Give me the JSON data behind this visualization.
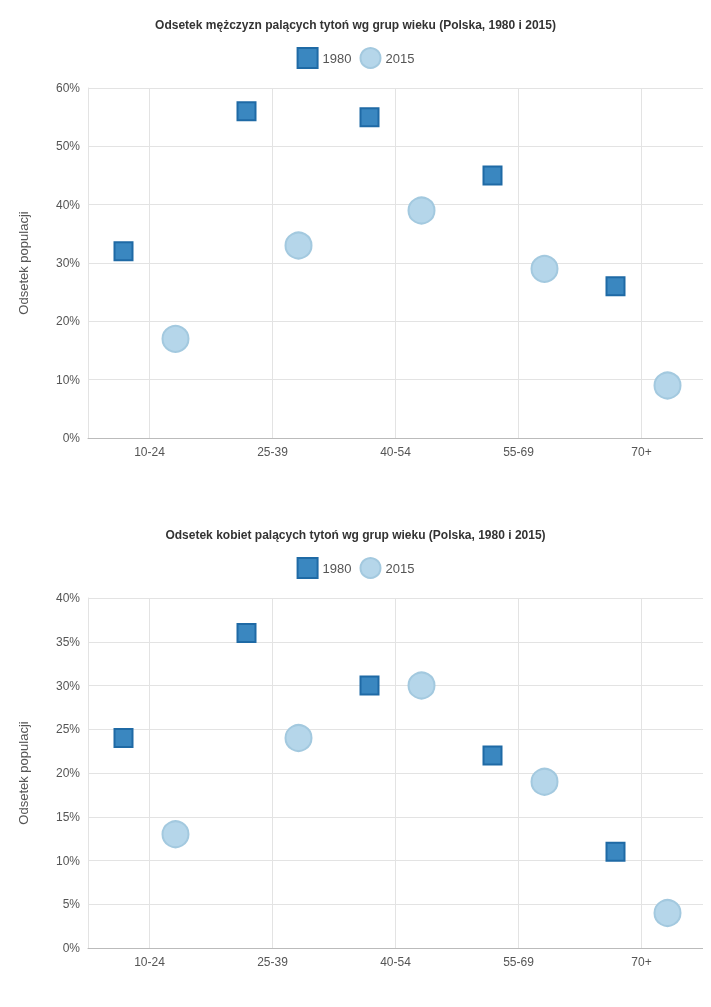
{
  "chart_data": [
    {
      "type": "scatter",
      "title": "Odsetek mężczyzn palących tytoń wg grup wieku (Polska, 1980 i 2015)",
      "ylabel": "Odsetek populacji",
      "categories": [
        "10-24",
        "25-39",
        "40-54",
        "55-69",
        "70+"
      ],
      "series": [
        {
          "name": "1980",
          "color": "#3a87c0",
          "marker": "square",
          "values": [
            32,
            56,
            55,
            45,
            26
          ]
        },
        {
          "name": "2015",
          "color": "#b5d6ea",
          "marker": "circle",
          "values": [
            17,
            33,
            39,
            29,
            9
          ]
        }
      ],
      "ylim": [
        0,
        60
      ],
      "yticks": [
        {
          "value": 0,
          "label": "0%"
        },
        {
          "value": 10,
          "label": "10%"
        },
        {
          "value": 20,
          "label": "20%"
        },
        {
          "value": 30,
          "label": "30%"
        },
        {
          "value": 40,
          "label": "40%"
        },
        {
          "value": 50,
          "label": "50%"
        },
        {
          "value": 60,
          "label": "60%"
        }
      ],
      "grid": true,
      "legend": "top"
    },
    {
      "type": "scatter",
      "title": "Odsetek kobiet palących tytoń wg grup wieku (Polska, 1980 i 2015)",
      "ylabel": "Odsetek populacji",
      "categories": [
        "10-24",
        "25-39",
        "40-54",
        "55-69",
        "70+"
      ],
      "series": [
        {
          "name": "1980",
          "color": "#3a87c0",
          "marker": "square",
          "values": [
            24,
            36,
            30,
            22,
            11
          ]
        },
        {
          "name": "2015",
          "color": "#b5d6ea",
          "marker": "circle",
          "values": [
            13,
            24,
            30,
            19,
            4
          ]
        }
      ],
      "ylim": [
        0,
        40
      ],
      "yticks": [
        {
          "value": 0,
          "label": "0%"
        },
        {
          "value": 5,
          "label": "5%"
        },
        {
          "value": 10,
          "label": "10%"
        },
        {
          "value": 15,
          "label": "15%"
        },
        {
          "value": 20,
          "label": "20%"
        },
        {
          "value": 25,
          "label": "25%"
        },
        {
          "value": 30,
          "label": "30%"
        },
        {
          "value": 35,
          "label": "35%"
        },
        {
          "value": 40,
          "label": "40%"
        }
      ],
      "grid": true,
      "legend": "top"
    }
  ]
}
